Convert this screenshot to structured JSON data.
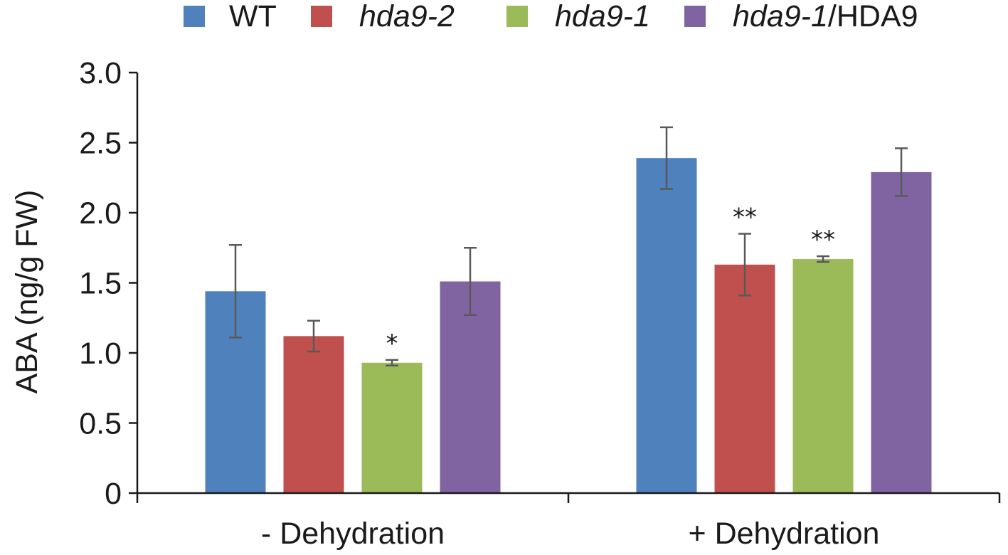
{
  "chart_data": {
    "type": "bar",
    "title": "",
    "ylabel": "ABA (ng/g FW)",
    "xlabel": "",
    "ylim": [
      0,
      3.0
    ],
    "yticks": [
      "0",
      "0.5",
      "1.0",
      "1.5",
      "2.0",
      "2.5",
      "3.0"
    ],
    "ytick_values": [
      0,
      0.5,
      1.0,
      1.5,
      2.0,
      2.5,
      3.0
    ],
    "categories": [
      "- Dehydration",
      "+ Dehydration"
    ],
    "legend_position": "top",
    "series": [
      {
        "name_italic": "",
        "name_plain": "WT",
        "color": "#4f81bd",
        "values": [
          1.44,
          2.39
        ],
        "errors": [
          0.33,
          0.22
        ],
        "significance": [
          "",
          ""
        ]
      },
      {
        "name_italic": "hda9-2",
        "name_plain": "",
        "color": "#c0504d",
        "values": [
          1.12,
          1.63
        ],
        "errors": [
          0.11,
          0.22
        ],
        "significance": [
          "",
          "**"
        ]
      },
      {
        "name_italic": "hda9-1",
        "name_plain": "",
        "color": "#9bbb59",
        "values": [
          0.93,
          1.67
        ],
        "errors": [
          0.02,
          0.02
        ],
        "significance": [
          "*",
          "**"
        ]
      },
      {
        "name_italic": "hda9-1",
        "name_plain": "/HDA9",
        "color": "#8064a2",
        "values": [
          1.51,
          2.29
        ],
        "errors": [
          0.24,
          0.17
        ],
        "significance": [
          "",
          ""
        ]
      }
    ]
  }
}
